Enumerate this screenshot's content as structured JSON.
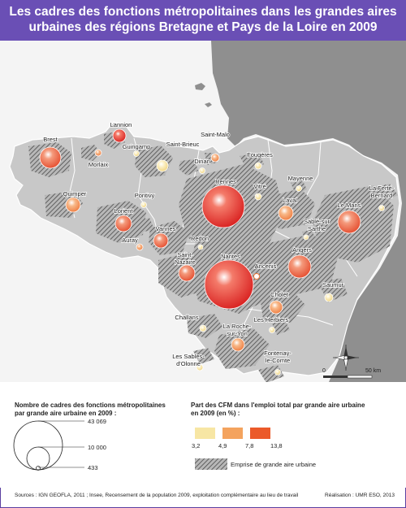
{
  "title_line1": "Les cadres des fonctions métropolitaines dans les grandes aires",
  "title_line2": "urbaines des régions Bretagne et Pays de la Loire en 2009",
  "cities": [
    {
      "name": "Lannion"
    },
    {
      "name": "Brest"
    },
    {
      "name": "Morlaix"
    },
    {
      "name": "Guingamp"
    },
    {
      "name": "Saint-Brieuc"
    },
    {
      "name": "Saint-Malo"
    },
    {
      "name": "Dinan"
    },
    {
      "name": "Quimper"
    },
    {
      "name": "Pontivy"
    },
    {
      "name": "Lorient"
    },
    {
      "name": "Auray"
    },
    {
      "name": "Vannes"
    },
    {
      "name": "Redon"
    },
    {
      "name": "Rennes"
    },
    {
      "name": "Fougères"
    },
    {
      "name": "Vitré"
    },
    {
      "name": "Mayenne"
    },
    {
      "name": "Laval"
    },
    {
      "name": "La Ferté-"
    },
    {
      "name": "Bernard"
    },
    {
      "name": "Le Mans"
    },
    {
      "name": "Sablé-sur"
    },
    {
      "name": "Sarthe"
    },
    {
      "name": "Saint-"
    },
    {
      "name": "Nazaire"
    },
    {
      "name": "Nantes"
    },
    {
      "name": "Ancenis"
    },
    {
      "name": "Angers"
    },
    {
      "name": "Saumur"
    },
    {
      "name": "Cholet"
    },
    {
      "name": "Challans"
    },
    {
      "name": "Les Herbiers"
    },
    {
      "name": "La Roche-"
    },
    {
      "name": "sur-Yon"
    },
    {
      "name": "Fontenay-"
    },
    {
      "name": "le-Comte"
    },
    {
      "name": "Les Sables-"
    },
    {
      "name": "d'Olonne"
    }
  ],
  "scale": {
    "zero": "0",
    "max": "50 km"
  },
  "legend": {
    "size_title_1": "Nombre de cadres des fonctions métropolitaines",
    "size_title_2": "par grande aire urbaine en 2009 :",
    "size_values": [
      "43 069",
      "10 000",
      "433"
    ],
    "color_title_1": "Part des CFM dans l'emploi total par grande aire urbaine",
    "color_title_2": "en 2009 (en %) :",
    "color_breaks": [
      "3,2",
      "4,9",
      "7,8",
      "13,8"
    ],
    "colors": [
      "#f7e6a4",
      "#f4a35e",
      "#eb5a2a",
      "#d81e1e"
    ],
    "hatch_label": "Emprise de grande aire urbaine"
  },
  "sources": "Sources : IGN GEOFLA, 2011 ; Insee, Recensement de la population 2009, exploitation complémentaire au lieu de travail",
  "realisation": "Réalisation : UMR ESO, 2013"
}
